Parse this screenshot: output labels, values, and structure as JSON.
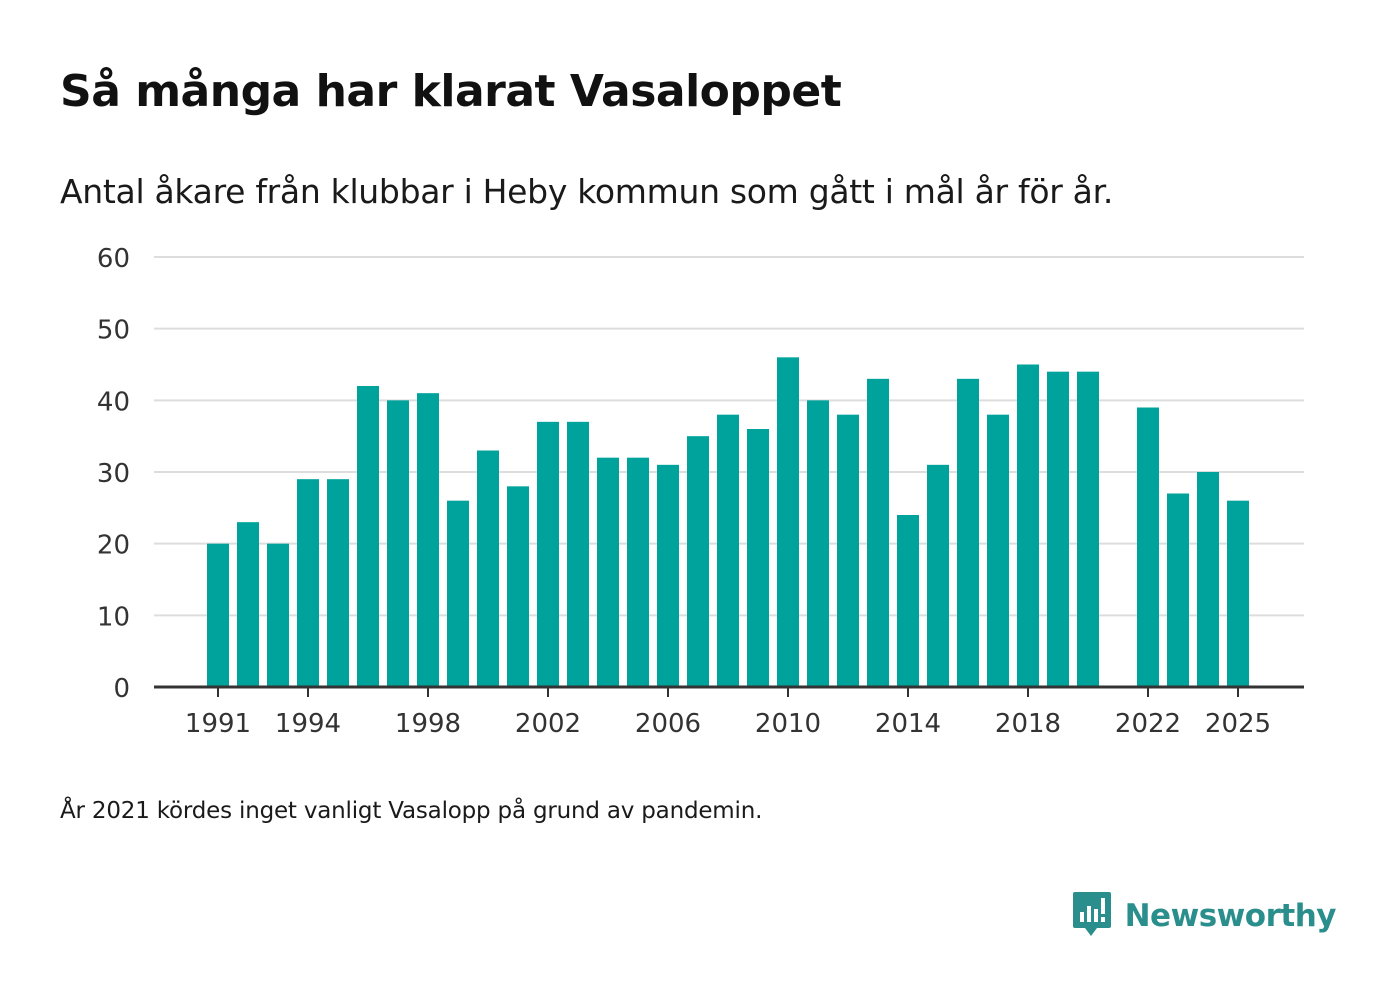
{
  "header": {
    "title": "Så många har klarat Vasaloppet",
    "subtitle": "Antal åkare från klubbar i Heby kommun som gått i mål år för år."
  },
  "footer": {
    "note": "År 2021 kördes inget vanligt Vasalopp på grund av pandemin.",
    "brand": "Newsworthy",
    "brand_icon": "newsworthy-logo-icon"
  },
  "colors": {
    "bar": "#00A39B",
    "grid": "#dddddd",
    "axis": "#333333",
    "brand": "#2a8f8c"
  },
  "chart_data": {
    "type": "bar",
    "title": "Så många har klarat Vasaloppet",
    "xlabel": "",
    "ylabel": "",
    "ylim": [
      0,
      60
    ],
    "yticks": [
      0,
      10,
      20,
      30,
      40,
      50,
      60
    ],
    "xticks": [
      1991,
      1994,
      1998,
      2002,
      2006,
      2010,
      2014,
      2018,
      2022,
      2025
    ],
    "grid": true,
    "categories": [
      1991,
      1992,
      1993,
      1994,
      1995,
      1996,
      1997,
      1998,
      1999,
      2000,
      2001,
      2002,
      2003,
      2004,
      2005,
      2006,
      2007,
      2008,
      2009,
      2010,
      2011,
      2012,
      2013,
      2014,
      2015,
      2016,
      2017,
      2018,
      2019,
      2020,
      2021,
      2022,
      2023,
      2024,
      2025
    ],
    "values": [
      20,
      23,
      20,
      29,
      29,
      42,
      40,
      41,
      26,
      33,
      28,
      37,
      37,
      32,
      32,
      31,
      35,
      38,
      36,
      46,
      40,
      38,
      43,
      24,
      31,
      43,
      38,
      45,
      44,
      44,
      null,
      39,
      27,
      30,
      26
    ]
  }
}
